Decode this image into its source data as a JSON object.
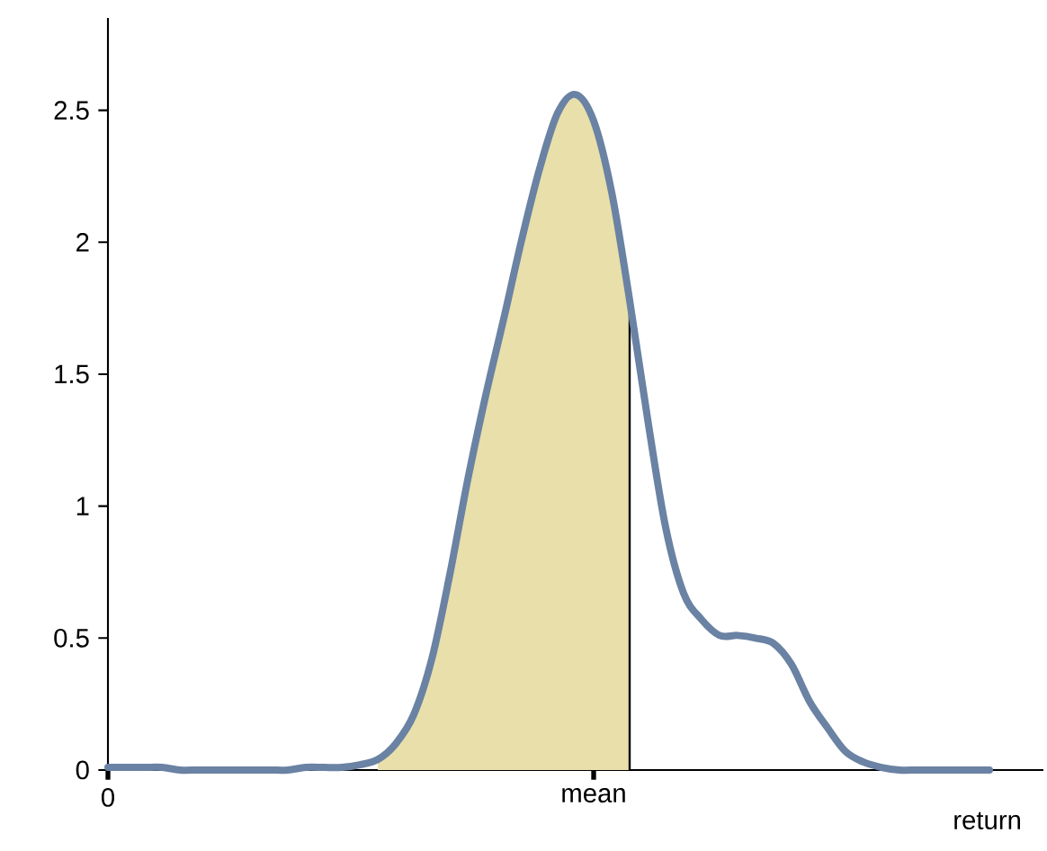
{
  "chart_data": {
    "type": "line",
    "xlabel": "return",
    "categories": [
      "0",
      null,
      null,
      null,
      null,
      null,
      null,
      null,
      null,
      null,
      null,
      null,
      null,
      null,
      null,
      null,
      null,
      null,
      null,
      null,
      null,
      null,
      null,
      null,
      null,
      null,
      null,
      "mean",
      null,
      null,
      null,
      null,
      null,
      null,
      null,
      null,
      null,
      null,
      null,
      null,
      null,
      null,
      null,
      null,
      null,
      null,
      null,
      null,
      null,
      null
    ],
    "ylim": [
      0,
      2.85
    ],
    "yticks": [
      0,
      0.5,
      1,
      1.5,
      2,
      2.5
    ],
    "series": [
      {
        "type": "area",
        "color": "#e8dfaa",
        "values": [
          null,
          null,
          null,
          null,
          null,
          null,
          null,
          null,
          null,
          null,
          null,
          null,
          null,
          null,
          null,
          0.04,
          0.1,
          0.21,
          0.42,
          0.74,
          1.1,
          1.42,
          1.71,
          2.01,
          2.28,
          2.49,
          2.56,
          2.46,
          2.19,
          1.78,
          null,
          null,
          null,
          null,
          null,
          null,
          null,
          null,
          null,
          null,
          null,
          null,
          null,
          null,
          null,
          null,
          null,
          null,
          null,
          null
        ]
      },
      {
        "color": "#6a82a3",
        "values": [
          0.01,
          0.01,
          0.01,
          0.01,
          0.0,
          0.0,
          0.0,
          0.0,
          0.0,
          0.0,
          0.0,
          0.01,
          0.01,
          0.01,
          0.02,
          0.04,
          0.1,
          0.21,
          0.42,
          0.74,
          1.1,
          1.42,
          1.71,
          2.01,
          2.28,
          2.49,
          2.56,
          2.46,
          2.19,
          1.78,
          1.33,
          0.92,
          0.67,
          0.57,
          0.51,
          0.51,
          0.5,
          0.48,
          0.4,
          0.26,
          0.16,
          0.07,
          0.03,
          0.01,
          0,
          0,
          0,
          0,
          0,
          0
        ]
      }
    ]
  }
}
